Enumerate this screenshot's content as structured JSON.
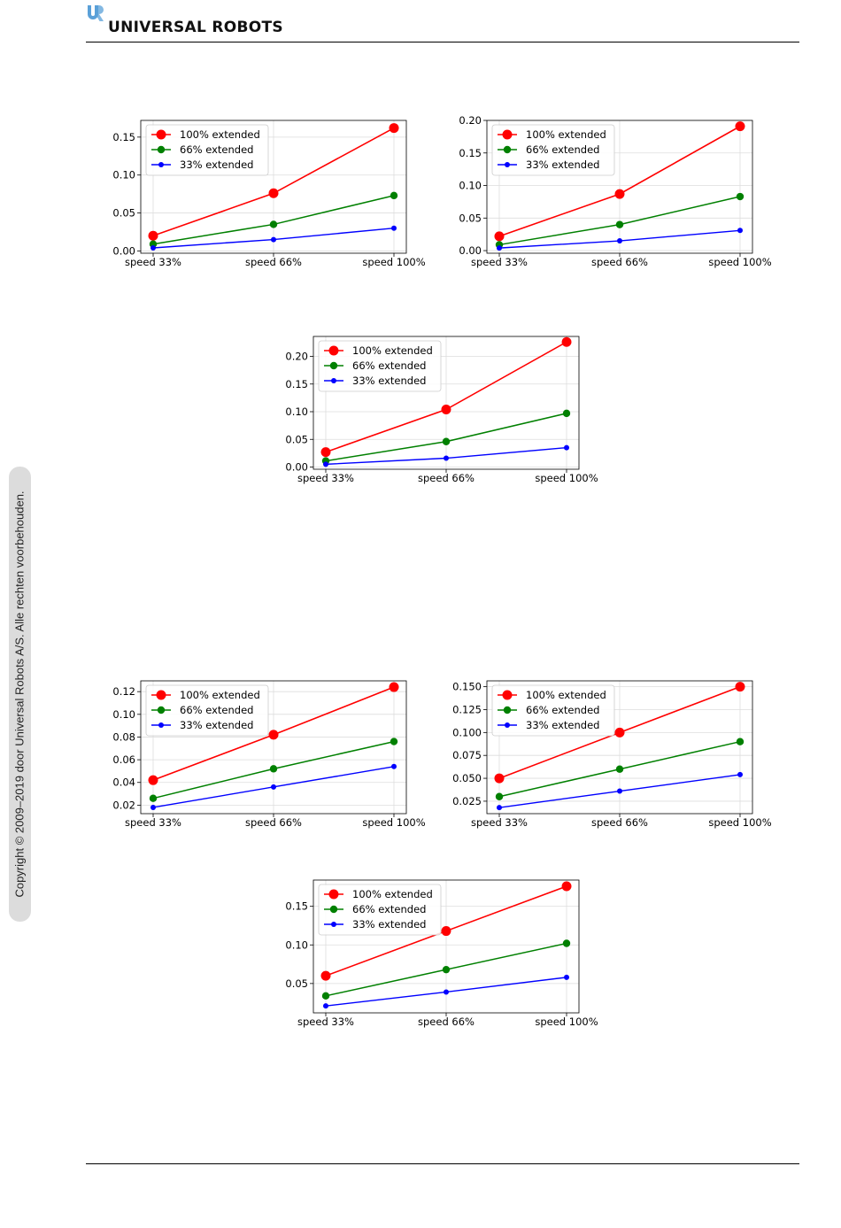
{
  "header": {
    "brand": "UNIVERSAL ROBOTS",
    "logo": "ur-logo-mark"
  },
  "sidebar": {
    "copyright": "Copyright © 2009–2019 door Universal Robots A/S. Alle rechten voorbehouden."
  },
  "colors": {
    "series_100": "#ff0000",
    "series_66": "#008000",
    "series_33": "#0000ff",
    "grid": "#dddddd",
    "logo": "#5aa0d8"
  },
  "chart_data": [
    {
      "type": "line",
      "categories": [
        "speed 33%",
        "speed 66%",
        "speed 100%"
      ],
      "ylim": [
        -0.003,
        0.172
      ],
      "yticks": [
        "0.00",
        "0.05",
        "0.10",
        "0.15"
      ],
      "legend": "top-left",
      "grid": true,
      "series": [
        {
          "name": "100% extended",
          "values": [
            0.02,
            0.076,
            0.162
          ]
        },
        {
          "name": "66% extended",
          "values": [
            0.009,
            0.035,
            0.073
          ]
        },
        {
          "name": "33% extended",
          "values": [
            0.004,
            0.015,
            0.03
          ]
        }
      ]
    },
    {
      "type": "line",
      "categories": [
        "speed 33%",
        "speed 66%",
        "speed 100%"
      ],
      "ylim": [
        -0.004,
        0.2
      ],
      "yticks": [
        "0.00",
        "0.05",
        "0.10",
        "0.15",
        "0.20"
      ],
      "legend": "top-left",
      "grid": true,
      "series": [
        {
          "name": "100% extended",
          "values": [
            0.022,
            0.087,
            0.191
          ]
        },
        {
          "name": "66% extended",
          "values": [
            0.009,
            0.04,
            0.083
          ]
        },
        {
          "name": "33% extended",
          "values": [
            0.004,
            0.015,
            0.031
          ]
        }
      ]
    },
    {
      "type": "line",
      "categories": [
        "speed 33%",
        "speed 66%",
        "speed 100%"
      ],
      "ylim": [
        -0.004,
        0.236
      ],
      "yticks": [
        "0.00",
        "0.05",
        "0.10",
        "0.15",
        "0.20"
      ],
      "legend": "top-left",
      "grid": true,
      "series": [
        {
          "name": "100% extended",
          "values": [
            0.027,
            0.104,
            0.226
          ]
        },
        {
          "name": "66% extended",
          "values": [
            0.011,
            0.046,
            0.097
          ]
        },
        {
          "name": "33% extended",
          "values": [
            0.005,
            0.016,
            0.035
          ]
        }
      ]
    },
    {
      "type": "line",
      "categories": [
        "speed 33%",
        "speed 66%",
        "speed 100%"
      ],
      "ylim": [
        0.0125,
        0.1295
      ],
      "yticks": [
        "0.02",
        "0.04",
        "0.06",
        "0.08",
        "0.10",
        "0.12"
      ],
      "legend": "top-left",
      "grid": true,
      "series": [
        {
          "name": "100% extended",
          "values": [
            0.042,
            0.082,
            0.124
          ]
        },
        {
          "name": "66% extended",
          "values": [
            0.026,
            0.052,
            0.076
          ]
        },
        {
          "name": "33% extended",
          "values": [
            0.018,
            0.036,
            0.054
          ]
        }
      ]
    },
    {
      "type": "line",
      "categories": [
        "speed 33%",
        "speed 66%",
        "speed 100%"
      ],
      "ylim": [
        0.0114,
        0.1564
      ],
      "yticks": [
        "0.025",
        "0.050",
        "0.075",
        "0.100",
        "0.125",
        "0.150"
      ],
      "legend": "top-left",
      "grid": true,
      "series": [
        {
          "name": "100% extended",
          "values": [
            0.05,
            0.1,
            0.15
          ]
        },
        {
          "name": "66% extended",
          "values": [
            0.03,
            0.06,
            0.09
          ]
        },
        {
          "name": "33% extended",
          "values": [
            0.018,
            0.036,
            0.054
          ]
        }
      ]
    },
    {
      "type": "line",
      "categories": [
        "speed 33%",
        "speed 66%",
        "speed 100%"
      ],
      "ylim": [
        0.012,
        0.184
      ],
      "yticks": [
        "0.05",
        "0.10",
        "0.15"
      ],
      "legend": "top-left",
      "grid": true,
      "series": [
        {
          "name": "100% extended",
          "values": [
            0.06,
            0.118,
            0.176
          ]
        },
        {
          "name": "66% extended",
          "values": [
            0.034,
            0.068,
            0.102
          ]
        },
        {
          "name": "33% extended",
          "values": [
            0.021,
            0.039,
            0.058
          ]
        }
      ]
    }
  ]
}
